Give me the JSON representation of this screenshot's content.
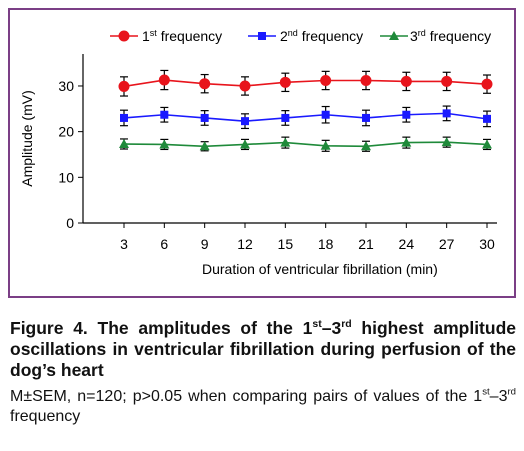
{
  "chart_data": {
    "type": "line",
    "x": [
      3,
      6,
      9,
      12,
      15,
      18,
      21,
      24,
      27,
      30
    ],
    "xlabel": "Duration of ventricular fibrillation (min)",
    "ylabel": "Amplitude (mV)",
    "ylim": [
      0,
      30
    ],
    "yticks": [
      0,
      10,
      20,
      30
    ],
    "grid": false,
    "legend": "top",
    "series": [
      {
        "label_main": "1",
        "label_sup": "st",
        "label_rest": " frequency",
        "color": "#e8141c",
        "marker": "circle",
        "values": [
          29.9,
          31.3,
          30.5,
          30.0,
          30.8,
          31.2,
          31.2,
          31.0,
          31.0,
          30.4
        ],
        "errors": [
          2.1,
          2.1,
          2.0,
          2.0,
          2.0,
          2.0,
          2.0,
          2.0,
          2.0,
          2.0
        ]
      },
      {
        "label_main": "2",
        "label_sup": "nd",
        "label_rest": " frequency",
        "color": "#1a1aff",
        "marker": "square",
        "values": [
          23.0,
          23.7,
          23.0,
          22.3,
          23.0,
          23.7,
          23.0,
          23.7,
          24.0,
          22.8
        ],
        "errors": [
          1.7,
          1.6,
          1.6,
          1.6,
          1.6,
          1.8,
          1.7,
          1.6,
          1.6,
          1.7
        ]
      },
      {
        "label_main": "3",
        "label_sup": "rd",
        "label_rest": " frequency",
        "color": "#1f8a3a",
        "marker": "triangle",
        "values": [
          17.3,
          17.2,
          16.8,
          17.2,
          17.6,
          16.9,
          16.8,
          17.6,
          17.7,
          17.2
        ],
        "errors": [
          1.1,
          1.1,
          1.0,
          1.1,
          1.2,
          1.2,
          1.1,
          1.2,
          1.1,
          1.1
        ]
      }
    ]
  },
  "caption": {
    "title_a": "Figure 4. The amplitudes of the 1",
    "title_sup1": "st",
    "title_b": "–3",
    "title_sup2": "rd",
    "title_c": " highest amplitude oscillations in ventricular fibrillation during perfusion of the dog’s heart",
    "note_a": "M±SEM, n=120; p>0.05 when comparing pairs of values of the 1",
    "note_sup1": "st",
    "note_b": "–3",
    "note_sup2": "rd",
    "note_c": " frequency"
  }
}
